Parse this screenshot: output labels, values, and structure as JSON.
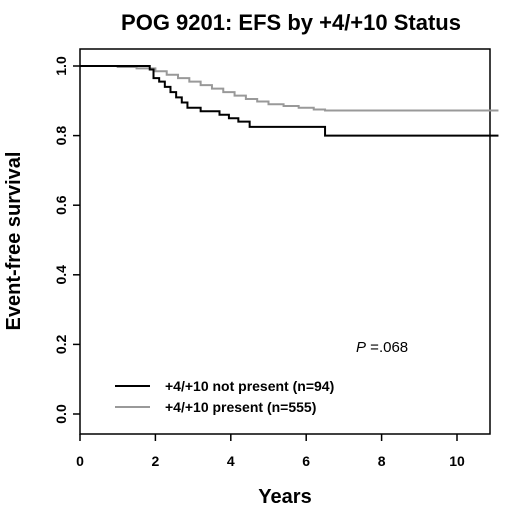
{
  "chart_data": {
    "type": "line",
    "title": "POG 9201: EFS by +4/+10 Status",
    "xlabel": "Years",
    "ylabel": "Event-free survival",
    "xlim": [
      0,
      11.2
    ],
    "ylim": [
      0,
      1
    ],
    "xticks": [
      0,
      2,
      4,
      6,
      8,
      10
    ],
    "yticks": [
      0.0,
      0.2,
      0.4,
      0.6,
      0.8,
      1.0
    ],
    "xtick_labels": [
      "0",
      "2",
      "4",
      "6",
      "8",
      "10"
    ],
    "ytick_labels": [
      "0.0",
      "0.2",
      "0.4",
      "0.6",
      "0.8",
      "1.0"
    ],
    "annotation": {
      "prefix": "P",
      "text": " =.068"
    },
    "legend": {
      "position": "bottom-left"
    },
    "grid": false,
    "step": true,
    "series": [
      {
        "name": "+4/+10 not present (n=94)",
        "color": "#000000",
        "x": [
          0,
          1.85,
          1.95,
          2.1,
          2.25,
          2.4,
          2.55,
          2.7,
          2.85,
          3.2,
          3.7,
          3.95,
          4.2,
          4.5,
          6.5,
          11.1
        ],
        "y": [
          1.0,
          0.99,
          0.965,
          0.955,
          0.94,
          0.925,
          0.91,
          0.895,
          0.88,
          0.87,
          0.86,
          0.85,
          0.84,
          0.825,
          0.8,
          0.8
        ]
      },
      {
        "name": "+4/+10 present (n=555)",
        "color": "#999999",
        "x": [
          0,
          1.0,
          1.5,
          2.0,
          2.3,
          2.6,
          2.9,
          3.2,
          3.5,
          3.8,
          4.1,
          4.4,
          4.7,
          5.0,
          5.4,
          5.8,
          6.2,
          6.5,
          11.1
        ],
        "y": [
          1.0,
          0.997,
          0.993,
          0.985,
          0.975,
          0.965,
          0.955,
          0.945,
          0.935,
          0.925,
          0.915,
          0.905,
          0.898,
          0.89,
          0.885,
          0.88,
          0.875,
          0.872,
          0.872
        ]
      }
    ]
  }
}
